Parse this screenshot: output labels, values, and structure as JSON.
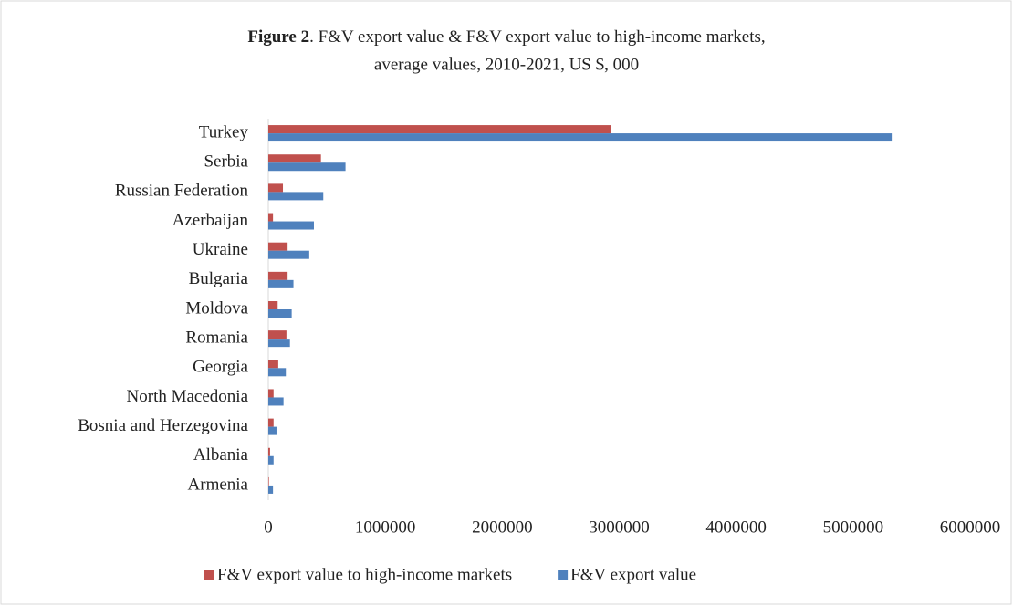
{
  "chart_data": {
    "type": "hbar",
    "title_lead": "Figure 2",
    "title": [
      ". F&V export value & F&V export value to high-income markets,",
      "average values, 2010-2021, US $, 000"
    ],
    "categories": [
      "Turkey",
      "Serbia",
      "Russian Federation",
      "Azerbaijan",
      "Ukraine",
      "Bulgaria",
      "Moldova",
      "Romania",
      "Georgia",
      "North Macedonia",
      "Bosnia and Herzegovina",
      "Albania",
      "Armenia"
    ],
    "series": [
      {
        "name": "F&V export value to high-income markets",
        "color": "#c0504d",
        "values": [
          2930000,
          450000,
          125000,
          40000,
          165000,
          165000,
          80000,
          155000,
          85000,
          45000,
          45000,
          15000,
          5000
        ]
      },
      {
        "name": "F&V export value",
        "color": "#4f81bd",
        "values": [
          5330000,
          660000,
          470000,
          390000,
          350000,
          215000,
          200000,
          185000,
          150000,
          130000,
          70000,
          45000,
          40000
        ]
      }
    ],
    "xlim": [
      0,
      6000000
    ],
    "xticks": [
      0,
      1000000,
      2000000,
      3000000,
      4000000,
      5000000,
      6000000
    ],
    "grid": false,
    "legend": "bottom"
  }
}
